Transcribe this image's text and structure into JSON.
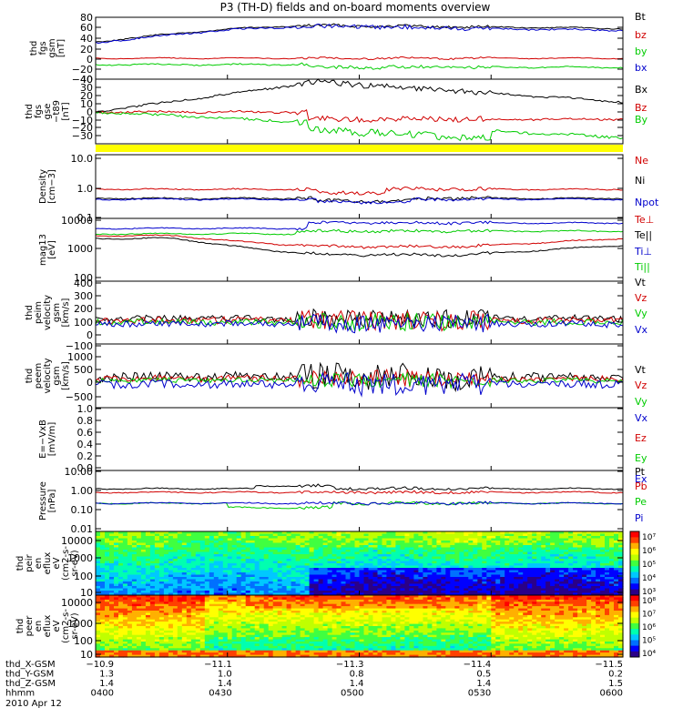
{
  "title": "P3 (TH-D) fields and on-board moments overview",
  "date": "2010 Apr 12",
  "colors": {
    "black": "#000000",
    "red": "#d10000",
    "green": "#00cc00",
    "blue": "#0000cc",
    "yellow": "#ffff00"
  },
  "chart_data": [
    {
      "type": "line",
      "id": "fgs_gsm",
      "ylabel": [
        "thd",
        "fgs",
        "gsm",
        "[nT]"
      ],
      "ylim": [
        -40,
        80
      ],
      "ticks": [
        "80",
        "60",
        "40",
        "20",
        "0",
        "−20",
        "−40"
      ],
      "series": [
        {
          "name": "Bt",
          "color": "#000000"
        },
        {
          "name": "bz",
          "color": "#d10000"
        },
        {
          "name": "by",
          "color": "#00cc00"
        },
        {
          "name": "bx",
          "color": "#0000cc"
        }
      ]
    },
    {
      "type": "line",
      "id": "fgs_gse",
      "ylabel": [
        "thd",
        "fgs",
        "gse",
        "−t89",
        "[nT]"
      ],
      "ylim": [
        -40,
        40
      ],
      "ticks": [
        "40",
        "30",
        "20",
        "10",
        "0",
        "−10",
        "−20",
        "−30"
      ],
      "series": [
        {
          "name": "Bx",
          "color": "#000000"
        },
        {
          "name": "Bz",
          "color": "#d10000"
        },
        {
          "name": "By",
          "color": "#00cc00"
        }
      ]
    },
    {
      "type": "line",
      "id": "density",
      "ylabel": [
        "Density",
        "[cm−3]"
      ],
      "ylim": [
        0.1,
        10
      ],
      "log": true,
      "ticks": [
        "10.0",
        "1.0",
        "0.1"
      ],
      "series": [
        {
          "name": "Ne",
          "color": "#d10000"
        },
        {
          "name": "Ni",
          "color": "#000000"
        },
        {
          "name": "Npot",
          "color": "#0000cc"
        }
      ]
    },
    {
      "type": "line",
      "id": "temperature",
      "ylabel": [
        "mag13",
        "[eV]"
      ],
      "ylim": [
        100,
        10000
      ],
      "log": true,
      "ticks": [
        "10000",
        "1000",
        "100"
      ],
      "series": [
        {
          "name": "Te⊥",
          "color": "#d10000"
        },
        {
          "name": "Te||",
          "color": "#000000"
        },
        {
          "name": "Ti⊥",
          "color": "#0000cc"
        },
        {
          "name": "Ti||",
          "color": "#00cc00"
        }
      ]
    },
    {
      "type": "line",
      "id": "peim_velocity",
      "ylabel": [
        "thd",
        "peim",
        "velocity",
        "gsm",
        "[km/s]"
      ],
      "ylim": [
        -100,
        400
      ],
      "ticks": [
        "400",
        "300",
        "200",
        "100",
        "0",
        "−100"
      ],
      "series": [
        {
          "name": "Vt",
          "color": "#000000"
        },
        {
          "name": "Vz",
          "color": "#d10000"
        },
        {
          "name": "Vy",
          "color": "#00cc00"
        },
        {
          "name": "Vx",
          "color": "#0000cc"
        }
      ]
    },
    {
      "type": "line",
      "id": "peem_velocity",
      "ylabel": [
        "thd",
        "peem",
        "velocity",
        "gsm",
        "[km/s]"
      ],
      "ylim": [
        -500,
        1000
      ],
      "ticks": [
        "1000",
        "500",
        "0",
        "−500"
      ],
      "series": [
        {
          "name": "Vt",
          "color": "#000000"
        },
        {
          "name": "Vz",
          "color": "#d10000"
        },
        {
          "name": "Vy",
          "color": "#00cc00"
        },
        {
          "name": "Vx",
          "color": "#0000cc"
        }
      ]
    },
    {
      "type": "line",
      "id": "efield",
      "ylabel": [
        "E=−VxB",
        "[mV/m]"
      ],
      "ylim": [
        0,
        1
      ],
      "ticks": [
        "1.0",
        "0.8",
        "0.6",
        "0.4",
        "0.2",
        "0.0"
      ],
      "series": [
        {
          "name": "Ez",
          "color": "#d10000"
        },
        {
          "name": "Ey",
          "color": "#00cc00"
        },
        {
          "name": "Ex",
          "color": "#0000cc"
        }
      ]
    },
    {
      "type": "line",
      "id": "pressure",
      "ylabel": [
        "Pressure",
        "[nPa]"
      ],
      "ylim": [
        0.01,
        10
      ],
      "log": true,
      "ticks": [
        "10.00",
        "1.00",
        "0.10",
        "0.01"
      ],
      "series": [
        {
          "name": "Pt",
          "color": "#000000"
        },
        {
          "name": "Pb",
          "color": "#d10000"
        },
        {
          "name": "Pe",
          "color": "#00cc00"
        },
        {
          "name": "Pi",
          "color": "#0000cc"
        }
      ]
    },
    {
      "type": "heatmap",
      "id": "peir",
      "ylabel": [
        "thd",
        "peir",
        "en",
        "eflux",
        "eV",
        "(cm2-s-",
        "sr-eV)"
      ],
      "ylim": [
        10,
        10000
      ],
      "log": true,
      "ticks": [
        "10000",
        "1000",
        "100",
        "10"
      ],
      "colorbar": {
        "labels": [
          "10⁷",
          "10⁶",
          "10⁵",
          "10⁴",
          "10³"
        ]
      }
    },
    {
      "type": "heatmap",
      "id": "peer",
      "ylabel": [
        "thd",
        "peer",
        "en",
        "eflux",
        "eV",
        "(cm2-s-",
        "sr-eV)"
      ],
      "ylim": [
        10,
        10000
      ],
      "log": true,
      "ticks": [
        "10000",
        "1000",
        "100",
        "10"
      ],
      "colorbar": {
        "labels": [
          "10⁸",
          "10⁷",
          "10⁶",
          "10⁵",
          "10⁴"
        ]
      }
    }
  ],
  "ephemeris": {
    "rows": [
      {
        "label": "thd_X-GSM",
        "values": [
          "−10.9",
          "−11.1",
          "−11.3",
          "−11.4",
          "−11.5"
        ]
      },
      {
        "label": "thd_Y-GSM",
        "values": [
          "1.3",
          "1.0",
          "0.8",
          "0.5",
          "0.2"
        ]
      },
      {
        "label": "thd_Z-GSM",
        "values": [
          "1.4",
          "1.4",
          "1.4",
          "1.4",
          "1.5"
        ]
      },
      {
        "label": "hhmm",
        "values": [
          "0400",
          "0430",
          "0500",
          "0530",
          "0600"
        ]
      }
    ]
  }
}
